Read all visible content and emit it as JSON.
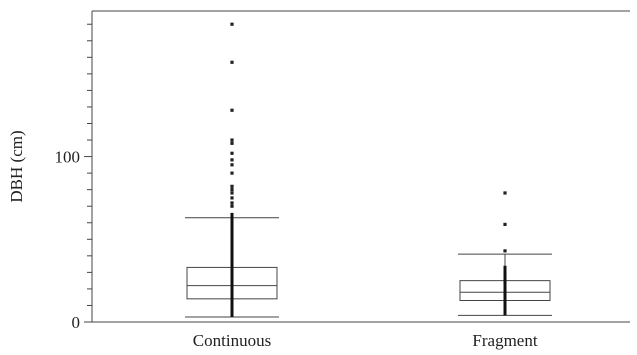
{
  "chart_data": {
    "type": "box",
    "ylabel": "DBH (cm)",
    "xlabel": "",
    "ylim": [
      0,
      188
    ],
    "yticks_major": [
      0,
      100
    ],
    "yticks_minor_step": 10,
    "categories": [
      "Continuous",
      "Fragment"
    ],
    "boxes": [
      {
        "category": "Continuous",
        "whisker_low": 3,
        "q1": 14,
        "median": 22,
        "q3": 33,
        "whisker_high": 63,
        "dense_points_range": [
          3,
          66
        ],
        "outliers": [
          70,
          72,
          75,
          78,
          80,
          82,
          90,
          95,
          98,
          102,
          108,
          110,
          128,
          157,
          180
        ]
      },
      {
        "category": "Fragment",
        "whisker_low": 4,
        "q1": 13,
        "median": 18,
        "q3": 25,
        "whisker_high": 41,
        "dense_points_range": [
          4,
          34
        ],
        "outliers": [
          43,
          59,
          78
        ]
      }
    ]
  }
}
